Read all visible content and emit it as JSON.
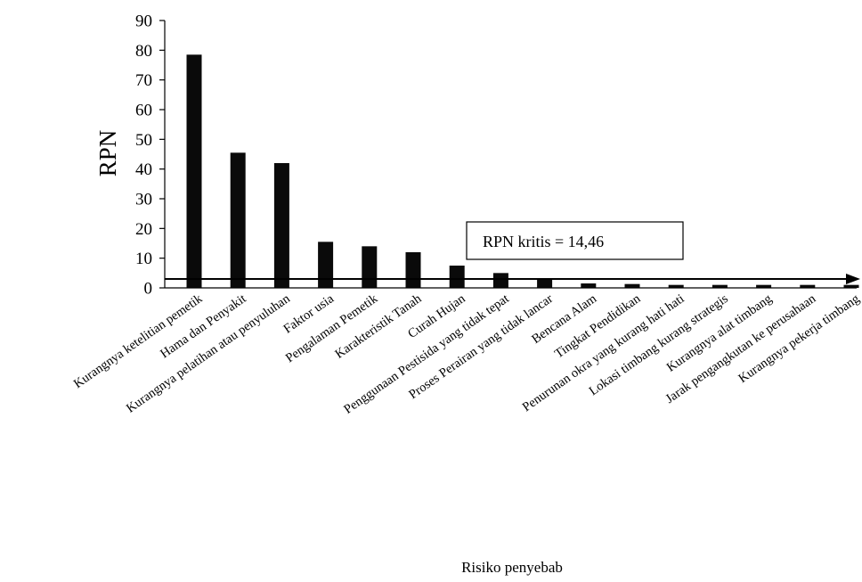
{
  "chart_data": {
    "type": "bar",
    "title": "",
    "xlabel": "Risiko penyebab",
    "ylabel": "RPN",
    "ylim": [
      0,
      90
    ],
    "yticks": [
      0,
      10,
      20,
      30,
      40,
      50,
      60,
      70,
      80,
      90
    ],
    "grid": false,
    "legend": "none",
    "categories": [
      "Kurangnya ketelitian pemetik",
      "Hama dan Penyakit",
      "Kurangnya pelatihan atau penyuluhan",
      "Faktor usia",
      "Pengalaman Pemetik",
      "Karakteristik Tanah",
      "Curah Hujan",
      "Penggunaan Pestisida yang tidak tepat",
      "Proses Perairan yang tidak lancar",
      "Bencana Alam",
      "Tingkat Pendidikan",
      "Penurunan okra yang kurang hati hati",
      "Lokasi timbang kurang strategis",
      "Kurangnya alat timbang",
      "Jarak pengangkutan ke perusahaan",
      "Kurangnya pekerja timbang"
    ],
    "values": [
      78.5,
      45.5,
      42,
      15.5,
      14,
      12,
      7.5,
      5,
      3,
      1.5,
      1.3,
      1,
      1,
      1,
      1,
      1
    ],
    "reference_line": {
      "value": 3,
      "label": "RPN kritis = 14,46"
    },
    "colors": {
      "bar": "#0a0a0a",
      "axis": "#000000"
    }
  }
}
